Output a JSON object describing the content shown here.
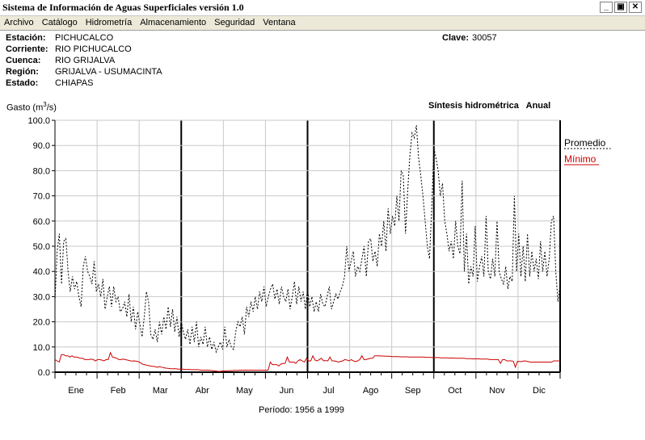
{
  "window": {
    "title": "Sistema de Información de Aguas Superficiales  versión 1.0",
    "min_label": "_",
    "max_label": "▣",
    "close_label": "✕"
  },
  "menu": [
    "Archivo",
    "Catálogo",
    "Hidrometría",
    "Almacenamiento",
    "Seguridad",
    "Ventana"
  ],
  "station": {
    "estacion_label": "Estación:",
    "estacion": "PICHUCALCO",
    "corriente_label": "Corriente:",
    "corriente": "RIO PICHUCALCO",
    "cuenca_label": "Cuenca:",
    "cuenca": "RIO GRIJALVA",
    "region_label": "Región:",
    "region": "GRIJALVA - USUMACINTA",
    "estado_label": "Estado:",
    "estado": "CHIAPAS",
    "clave_label": "Clave:",
    "clave": "30057"
  },
  "chart_data": {
    "type": "line",
    "title": "Síntesis hidrométrica   Anual",
    "ylabel_prefix": "Gasto (m",
    "ylabel_sup": "3",
    "ylabel_suffix": "/s)",
    "ylim": [
      0,
      100
    ],
    "yticks": [
      0,
      10,
      20,
      30,
      40,
      50,
      60,
      70,
      80,
      90,
      100
    ],
    "ytick_labels": [
      "0.0",
      "10.0",
      "20.0",
      "30.0",
      "40.0",
      "50.0",
      "60.0",
      "70.0",
      "80.0",
      "90.0",
      "100.0"
    ],
    "months": [
      "Ene",
      "Feb",
      "Mar",
      "Abr",
      "May",
      "Jun",
      "Jul",
      "Ago",
      "Sep",
      "Oct",
      "Nov",
      "Dic"
    ],
    "grid": true,
    "legend_position": "top-right",
    "period_text": "Período:  1956 a 1999",
    "series": [
      {
        "name": "Promedio",
        "color": "#000000",
        "dash": true,
        "values": [
          28,
          48,
          55,
          35,
          52,
          53,
          40,
          32,
          38,
          33,
          36,
          30,
          26,
          42,
          46,
          40,
          38,
          35,
          44,
          32,
          35,
          30,
          37,
          25,
          30,
          34,
          26,
          34,
          28,
          30,
          24,
          25,
          28,
          22,
          31,
          20,
          26,
          17,
          24,
          19,
          14,
          22,
          32,
          28,
          15,
          13,
          17,
          12,
          20,
          15,
          22,
          17,
          26,
          18,
          25,
          16,
          22,
          14,
          20,
          16,
          13,
          17,
          11,
          18,
          12,
          20,
          10,
          14,
          11,
          18,
          10,
          14,
          9,
          12,
          8,
          10,
          12,
          9,
          18,
          10,
          13,
          10,
          9,
          16,
          20,
          18,
          22,
          15,
          26,
          22,
          28,
          24,
          30,
          25,
          32,
          28,
          34,
          26,
          30,
          33,
          35,
          29,
          33,
          27,
          34,
          30,
          28,
          33,
          25,
          30,
          36,
          27,
          34,
          28,
          32,
          25,
          33,
          26,
          30,
          24,
          28,
          24,
          31,
          27,
          26,
          30,
          34,
          25,
          28,
          31,
          29,
          32,
          34,
          38,
          50,
          40,
          44,
          48,
          38,
          42,
          40,
          45,
          50,
          38,
          52,
          53,
          44,
          48,
          42,
          55,
          50,
          60,
          48,
          65,
          55,
          62,
          58,
          70,
          60,
          80,
          78,
          55,
          72,
          86,
          95,
          93,
          98,
          85,
          78,
          70,
          60,
          50,
          45,
          65,
          89,
          85,
          80,
          70,
          75,
          60,
          55,
          48,
          52,
          45,
          60,
          50,
          47,
          76,
          40,
          55,
          35,
          42,
          38,
          58,
          36,
          42,
          46,
          38,
          62,
          40,
          37,
          45,
          38,
          60,
          40,
          37,
          35,
          42,
          33,
          38,
          36,
          70,
          40,
          55,
          38,
          50,
          36,
          55,
          38,
          48,
          40,
          45,
          37,
          52,
          40,
          48,
          38,
          45,
          60,
          62,
          40,
          28,
          35
        ]
      },
      {
        "name": "Mínimo",
        "color": "#cc0000",
        "dash": false,
        "values": [
          5,
          4.5,
          4,
          7,
          7,
          6.5,
          6.5,
          6,
          6.5,
          6,
          6,
          5.8,
          5.5,
          5.5,
          5,
          5,
          5,
          5.2,
          5,
          4.5,
          5,
          5,
          4.8,
          4.5,
          5,
          5,
          7.8,
          6,
          5.8,
          5.5,
          5,
          5,
          5.2,
          5,
          4.8,
          4.6,
          4.4,
          4.5,
          4.4,
          4.2,
          3.8,
          3.2,
          3,
          2.8,
          2.6,
          2.4,
          2.3,
          2.2,
          2,
          2.2,
          2,
          1.8,
          1.6,
          1.5,
          1.4,
          1.3,
          1.4,
          1.3,
          1.2,
          1.2,
          1.2,
          1.1,
          1.1,
          1.1,
          1,
          1,
          1,
          1,
          0.9,
          0.8,
          0.8,
          0.8,
          0.8,
          0.7,
          0.6,
          0.5,
          0.4,
          0.3,
          0.4,
          0.5,
          0.5,
          0.6,
          0.6,
          0.6,
          0.7,
          0.7,
          0.7,
          0.8,
          0.8,
          0.8,
          0.8,
          0.8,
          0.8,
          0.8,
          0.8,
          0.8,
          0.8,
          0.8,
          0.8,
          0.8,
          0.8,
          4,
          3,
          3,
          3,
          2.5,
          3.2,
          3.5,
          3.5,
          6,
          4,
          4,
          4,
          3.5,
          4.5,
          5,
          4.5,
          4,
          5.5,
          4.5,
          4.5,
          6.5,
          4.8,
          4.5,
          5,
          5.5,
          4.5,
          4.6,
          4.5,
          6,
          4.5,
          4.5,
          4.3,
          4,
          4.3,
          4.5,
          5,
          4.8,
          4.5,
          5,
          4.5,
          4.2,
          4.5,
          5,
          6.5,
          5,
          5,
          5.3,
          5.5,
          5.5,
          6.5,
          6.5,
          6.5,
          6.4,
          6.4,
          6.3,
          6.3,
          6.3,
          6.2,
          6.2,
          6.2,
          6.2,
          6.1,
          6.1,
          6.1,
          6.1,
          6,
          6,
          6,
          6,
          6,
          6,
          6,
          6,
          5.9,
          5.9,
          5.9,
          5.8,
          5.8,
          5.8,
          5.8,
          5.7,
          5.7,
          5.7,
          5.7,
          5.6,
          5.6,
          5.6,
          5.5,
          5.5,
          5.5,
          5.5,
          5.5,
          5.4,
          5.4,
          5.4,
          5.3,
          5.3,
          5.3,
          5.3,
          5.2,
          5.2,
          5.2,
          5.2,
          5,
          5,
          5,
          5,
          5,
          3.5,
          5,
          5,
          4.5,
          4.5,
          4.5,
          4.4,
          2,
          4.3,
          4.2,
          4.2,
          4.5,
          4.4,
          4.2,
          4,
          4,
          4,
          4,
          4,
          4,
          4,
          4,
          4,
          4,
          4,
          4.5,
          4.5,
          4.5,
          4.5
        ]
      }
    ]
  }
}
